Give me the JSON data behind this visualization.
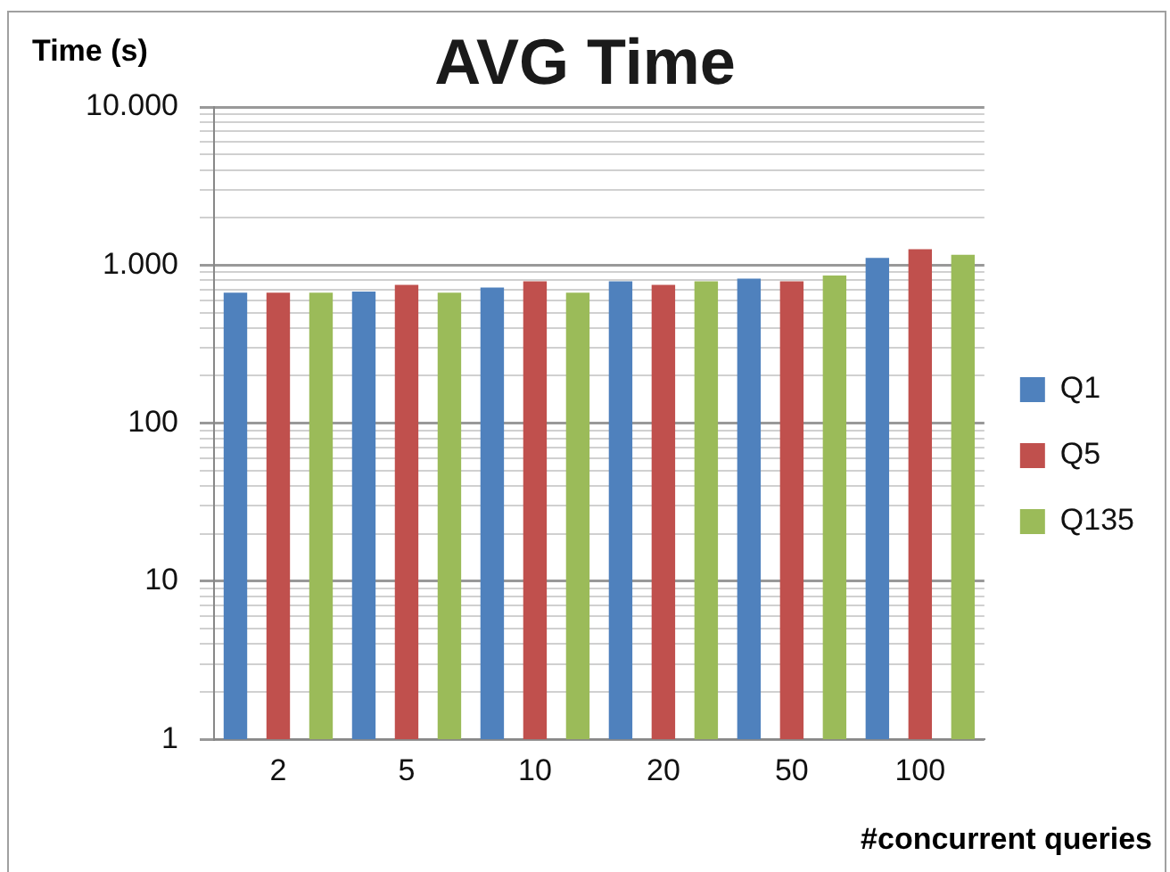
{
  "chart_data": {
    "type": "bar",
    "title": "AVG Time",
    "ylabel": "Time (s)",
    "xlabel": "#concurrent queries",
    "categories": [
      "2",
      "5",
      "10",
      "20",
      "50",
      "100"
    ],
    "series": [
      {
        "name": "Q1",
        "color": "#4f81bd",
        "values": [
          670,
          680,
          720,
          790,
          820,
          1110
        ]
      },
      {
        "name": "Q5",
        "color": "#c0504d",
        "values": [
          670,
          750,
          790,
          750,
          790,
          1260
        ]
      },
      {
        "name": "Q135",
        "color": "#9bbb59",
        "values": [
          670,
          670,
          670,
          790,
          860,
          1160
        ]
      }
    ],
    "log": "y",
    "ylim": [
      1,
      10000
    ],
    "yticks": [
      1,
      {
        "value": 2,
        "label": null
      },
      {
        "value": 3,
        "label": null
      },
      {
        "value": 4,
        "label": null
      },
      {
        "value": 5,
        "label": null
      },
      {
        "value": 6,
        "label": null
      },
      {
        "value": 7,
        "label": null
      },
      {
        "value": 8,
        "label": null
      },
      {
        "value": 9,
        "label": null
      },
      10,
      {
        "value": 20,
        "label": null
      },
      {
        "value": 30,
        "label": null
      },
      {
        "value": 40,
        "label": null
      },
      {
        "value": 50,
        "label": null
      },
      {
        "value": 60,
        "label": null
      },
      {
        "value": 70,
        "label": null
      },
      {
        "value": 80,
        "label": null
      },
      {
        "value": 90,
        "label": null
      },
      100,
      {
        "value": 200,
        "label": null
      },
      {
        "value": 300,
        "label": null
      },
      {
        "value": 400,
        "label": null
      },
      {
        "value": 500,
        "label": null
      },
      {
        "value": 600,
        "label": null
      },
      {
        "value": 700,
        "label": null
      },
      {
        "value": 800,
        "label": null
      },
      {
        "value": 900,
        "label": null
      },
      {
        "value": 1000,
        "label": "1.000"
      },
      {
        "value": 2000,
        "label": null
      },
      {
        "value": 3000,
        "label": null
      },
      {
        "value": 4000,
        "label": null
      },
      {
        "value": 5000,
        "label": null
      },
      {
        "value": 6000,
        "label": null
      },
      {
        "value": 7000,
        "label": null
      },
      {
        "value": 8000,
        "label": null
      },
      {
        "value": 9000,
        "label": null
      },
      {
        "value": 10000,
        "label": "10.000"
      }
    ],
    "grid": "y",
    "legend": "right"
  }
}
